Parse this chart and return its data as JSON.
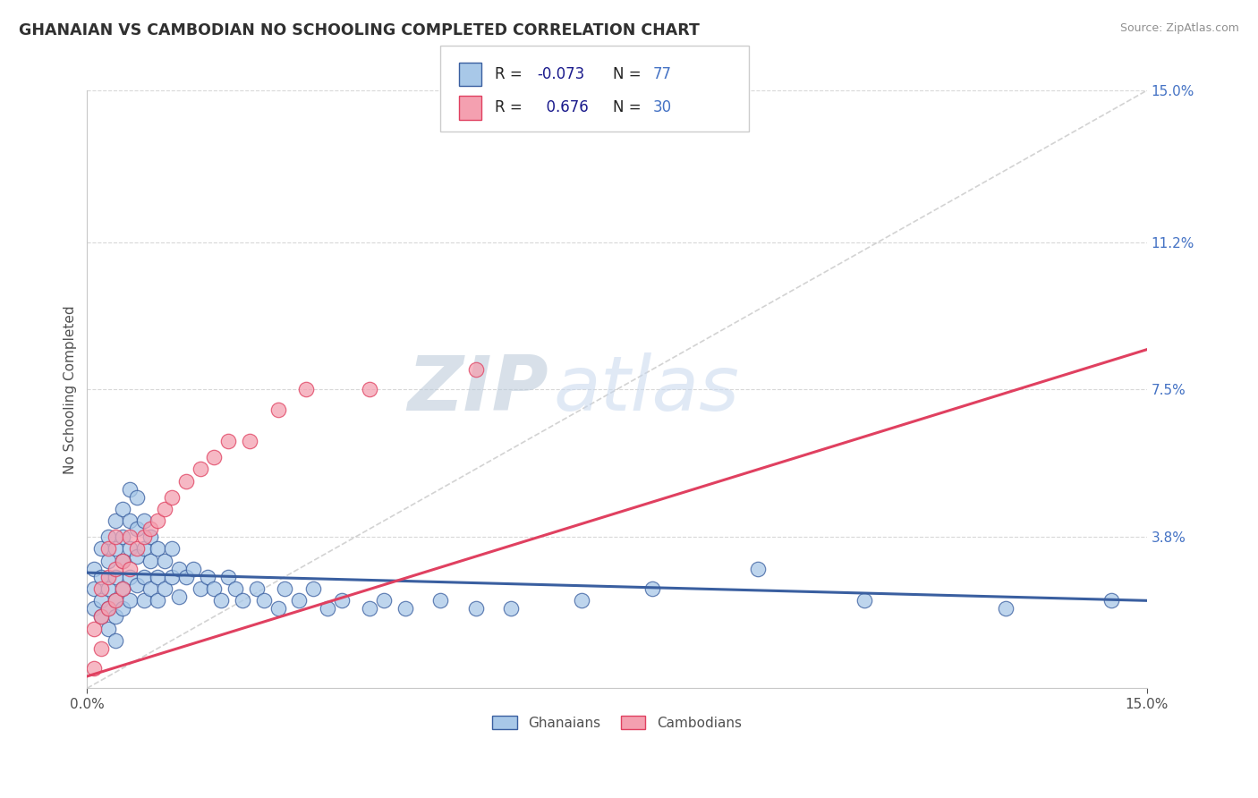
{
  "title": "GHANAIAN VS CAMBODIAN NO SCHOOLING COMPLETED CORRELATION CHART",
  "source": "Source: ZipAtlas.com",
  "ylabel": "No Schooling Completed",
  "xlim": [
    0,
    0.15
  ],
  "ylim": [
    0,
    0.15
  ],
  "ytick_labels_right": [
    "15.0%",
    "11.2%",
    "7.5%",
    "3.8%",
    ""
  ],
  "ytick_positions_right": [
    0.15,
    0.112,
    0.075,
    0.038,
    0.0
  ],
  "ghanaians_x": [
    0.001,
    0.001,
    0.001,
    0.002,
    0.002,
    0.002,
    0.002,
    0.003,
    0.003,
    0.003,
    0.003,
    0.003,
    0.004,
    0.004,
    0.004,
    0.004,
    0.004,
    0.004,
    0.005,
    0.005,
    0.005,
    0.005,
    0.005,
    0.006,
    0.006,
    0.006,
    0.006,
    0.006,
    0.007,
    0.007,
    0.007,
    0.007,
    0.008,
    0.008,
    0.008,
    0.008,
    0.009,
    0.009,
    0.009,
    0.01,
    0.01,
    0.01,
    0.011,
    0.011,
    0.012,
    0.012,
    0.013,
    0.013,
    0.014,
    0.015,
    0.016,
    0.017,
    0.018,
    0.019,
    0.02,
    0.021,
    0.022,
    0.024,
    0.025,
    0.027,
    0.028,
    0.03,
    0.032,
    0.034,
    0.036,
    0.04,
    0.042,
    0.045,
    0.05,
    0.055,
    0.06,
    0.07,
    0.08,
    0.095,
    0.11,
    0.13,
    0.145
  ],
  "ghanaians_y": [
    0.03,
    0.025,
    0.02,
    0.035,
    0.028,
    0.022,
    0.018,
    0.038,
    0.032,
    0.025,
    0.02,
    0.015,
    0.042,
    0.035,
    0.028,
    0.022,
    0.018,
    0.012,
    0.045,
    0.038,
    0.032,
    0.025,
    0.02,
    0.05,
    0.042,
    0.035,
    0.028,
    0.022,
    0.048,
    0.04,
    0.033,
    0.026,
    0.042,
    0.035,
    0.028,
    0.022,
    0.038,
    0.032,
    0.025,
    0.035,
    0.028,
    0.022,
    0.032,
    0.025,
    0.035,
    0.028,
    0.03,
    0.023,
    0.028,
    0.03,
    0.025,
    0.028,
    0.025,
    0.022,
    0.028,
    0.025,
    0.022,
    0.025,
    0.022,
    0.02,
    0.025,
    0.022,
    0.025,
    0.02,
    0.022,
    0.02,
    0.022,
    0.02,
    0.022,
    0.02,
    0.02,
    0.022,
    0.025,
    0.03,
    0.022,
    0.02,
    0.022
  ],
  "cambodians_x": [
    0.001,
    0.001,
    0.002,
    0.002,
    0.002,
    0.003,
    0.003,
    0.003,
    0.004,
    0.004,
    0.004,
    0.005,
    0.005,
    0.006,
    0.006,
    0.007,
    0.008,
    0.009,
    0.01,
    0.011,
    0.012,
    0.014,
    0.016,
    0.018,
    0.02,
    0.023,
    0.027,
    0.031,
    0.04,
    0.055
  ],
  "cambodians_y": [
    0.005,
    0.015,
    0.01,
    0.018,
    0.025,
    0.02,
    0.028,
    0.035,
    0.022,
    0.03,
    0.038,
    0.025,
    0.032,
    0.03,
    0.038,
    0.035,
    0.038,
    0.04,
    0.042,
    0.045,
    0.048,
    0.052,
    0.055,
    0.058,
    0.062,
    0.062,
    0.07,
    0.075,
    0.075,
    0.08
  ],
  "color_ghanaians": "#a8c8e8",
  "color_cambodians": "#f4a0b0",
  "color_blue_line": "#3a5fa0",
  "color_pink_line": "#e04060",
  "color_diagonal": "#c8c8c8",
  "color_grid": "#d8d8d8",
  "color_ytick_right": "#4472c4",
  "color_title": "#303030",
  "color_source": "#909090",
  "legend_color_r": "#1a1a8c",
  "legend_color_n": "#4472c4",
  "watermark_zip": "ZIP",
  "watermark_atlas": "atlas",
  "watermark_color": "#c8d8ee",
  "bottom_legend_ghanaians": "Ghanaians",
  "bottom_legend_cambodians": "Cambodians"
}
